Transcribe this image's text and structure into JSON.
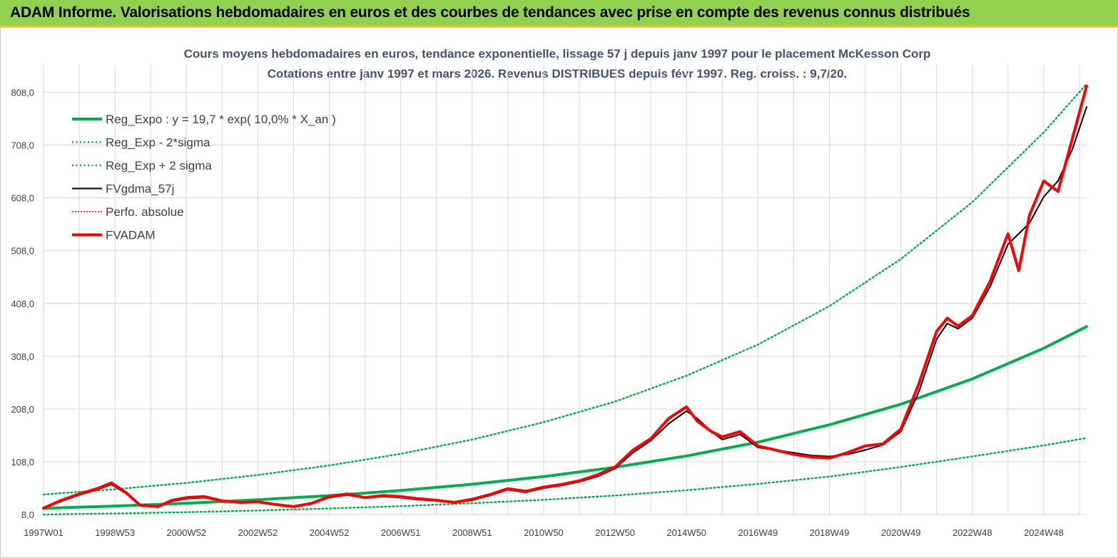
{
  "banner": {
    "title": "ADAM Informe. Valorisations hebdomadaires en euros et des courbes de tendances avec prise en compte des revenus connus distribués",
    "colors": {
      "background": "#92d050",
      "underline": "#f5c400"
    }
  },
  "chart_data": {
    "type": "line",
    "title": "Cours moyens hebdomadaires en euros, tendance exponentielle, lissage 57 j depuis janv 1997 pour le placement McKesson Corp",
    "subtitle": "Cotations entre janv 1997 et mars 2026. Revenus DISTRIBUES depuis févr 1997. Reg. croiss. : 9,7/20.",
    "xlabel": "",
    "ylabel": "",
    "xlim": [
      1997.0,
      2026.2
    ],
    "ylim": [
      8,
      860
    ],
    "grid": true,
    "y_ticks": [
      "8,0",
      "108,0",
      "208,0",
      "308,0",
      "408,0",
      "508,0",
      "608,0",
      "708,0",
      "808,0"
    ],
    "y_tick_values": [
      8,
      108,
      208,
      308,
      408,
      508,
      608,
      708,
      808
    ],
    "x_ticks": [
      "1997W01",
      "1998W53",
      "2000W52",
      "2002W52",
      "2004W52",
      "2006W51",
      "2008W51",
      "2010W50",
      "2012W50",
      "2014W50",
      "2016W49",
      "2018W49",
      "2020W49",
      "2022W48",
      "2024W48"
    ],
    "x_tick_values": [
      1997.0,
      1999.0,
      2001.0,
      2003.0,
      2005.0,
      2007.0,
      2009.0,
      2011.0,
      2013.0,
      2015.0,
      2017.0,
      2019.0,
      2021.0,
      2023.0,
      2025.0
    ],
    "legend": {
      "position": "top-left",
      "entries": [
        {
          "key": "reg",
          "label": "Reg_Expo : y = 19,7 * exp( 10,0% *  X_an )"
        },
        {
          "key": "minus",
          "label": "Reg_Exp - 2*sigma"
        },
        {
          "key": "plus",
          "label": "Reg_Exp + 2 sigma"
        },
        {
          "key": "gdma",
          "label": "FVgdma_57j"
        },
        {
          "key": "perfo",
          "label": "Perfo. absolue"
        },
        {
          "key": "adam",
          "label": "FVADAM"
        }
      ]
    },
    "series": [
      {
        "key": "reg",
        "name": "Reg_Expo : y = 19,7 * exp( 10,0% *  X_an )",
        "color": "#00b050",
        "style": "solid-thick",
        "x": [
          1997.0,
          1999.0,
          2001.0,
          2003.0,
          2005.0,
          2007.0,
          2009.0,
          2011.0,
          2013.0,
          2015.0,
          2017.0,
          2019.0,
          2021.0,
          2023.0,
          2025.0,
          2026.2
        ],
        "values": [
          19.7,
          24.1,
          29.4,
          35.9,
          43.8,
          53.5,
          65.4,
          79.8,
          97.5,
          119,
          145,
          178,
          217,
          265,
          323,
          364
        ]
      },
      {
        "key": "minus",
        "name": "Reg_Exp - 2*sigma",
        "color": "#00b050",
        "style": "dotted",
        "x": [
          1997.0,
          1999.0,
          2001.0,
          2003.0,
          2005.0,
          2007.0,
          2009.0,
          2011.0,
          2013.0,
          2015.0,
          2017.0,
          2019.0,
          2021.0,
          2023.0,
          2025.0,
          2026.2
        ],
        "values": [
          8,
          10,
          12.5,
          15.5,
          19.5,
          24,
          29.5,
          36,
          44,
          54,
          66,
          80,
          98,
          118,
          139,
          153
        ]
      },
      {
        "key": "plus",
        "name": "Reg_Exp + 2 sigma",
        "color": "#00b050",
        "style": "dotted",
        "x": [
          1997.0,
          1999.0,
          2001.0,
          2003.0,
          2005.0,
          2007.0,
          2009.0,
          2011.0,
          2013.0,
          2015.0,
          2017.0,
          2019.0,
          2021.0,
          2023.0,
          2025.0,
          2026.2
        ],
        "values": [
          46,
          56,
          68,
          83,
          101,
          123,
          150,
          183,
          222,
          271,
          330,
          403,
          492,
          600,
          732,
          824
        ]
      },
      {
        "key": "perfo",
        "name": "Perfo. absolue",
        "color": "#ff0000",
        "style": "dotted-thin",
        "x": [],
        "values": []
      },
      {
        "key": "gdma",
        "name": "FVgdma_57j",
        "color": "#000000",
        "style": "solid",
        "x": [
          1997.0,
          1997.5,
          1998.0,
          1998.5,
          1998.9,
          1999.3,
          1999.7,
          2000.2,
          2000.6,
          2001.0,
          2001.5,
          2002.0,
          2002.5,
          2003.0,
          2003.5,
          2004.0,
          2004.5,
          2005.0,
          2005.5,
          2006.0,
          2006.5,
          2007.0,
          2007.5,
          2008.0,
          2008.5,
          2009.0,
          2009.5,
          2010.0,
          2010.5,
          2011.0,
          2011.5,
          2012.0,
          2012.5,
          2013.0,
          2013.5,
          2014.0,
          2014.5,
          2015.0,
          2015.3,
          2015.7,
          2016.0,
          2016.5,
          2017.0,
          2017.5,
          2018.0,
          2018.5,
          2019.0,
          2019.5,
          2020.0,
          2020.5,
          2021.0,
          2021.5,
          2022.0,
          2022.3,
          2022.6,
          2023.0,
          2023.5,
          2024.0,
          2024.3,
          2024.6,
          2025.0,
          2025.4,
          2025.8,
          2026.2
        ],
        "values": [
          20,
          33,
          45,
          55,
          65,
          48,
          25,
          22,
          33,
          38,
          40,
          33,
          30,
          31,
          26,
          22,
          28,
          40,
          45,
          39,
          42,
          40,
          36,
          34,
          30,
          35,
          44,
          55,
          50,
          58,
          63,
          70,
          80,
          95,
          125,
          148,
          180,
          204,
          190,
          165,
          150,
          160,
          135,
          130,
          125,
          120,
          118,
          122,
          130,
          140,
          165,
          240,
          340,
          370,
          360,
          380,
          440,
          520,
          540,
          560,
          610,
          640,
          700,
          780
        ]
      },
      {
        "key": "adam",
        "name": "FVADAM",
        "color": "#ff0000",
        "style": "solid-thick",
        "x": [
          1997.0,
          1997.5,
          1998.0,
          1998.5,
          1998.9,
          1999.3,
          1999.7,
          2000.2,
          2000.6,
          2001.0,
          2001.5,
          2002.0,
          2002.5,
          2003.0,
          2003.5,
          2004.0,
          2004.5,
          2005.0,
          2005.5,
          2006.0,
          2006.5,
          2007.0,
          2007.5,
          2008.0,
          2008.5,
          2009.0,
          2009.5,
          2010.0,
          2010.5,
          2011.0,
          2011.5,
          2012.0,
          2012.5,
          2013.0,
          2013.5,
          2014.0,
          2014.5,
          2015.0,
          2015.3,
          2015.7,
          2016.0,
          2016.5,
          2017.0,
          2017.5,
          2018.0,
          2018.5,
          2019.0,
          2019.5,
          2020.0,
          2020.5,
          2021.0,
          2021.5,
          2022.0,
          2022.3,
          2022.6,
          2023.0,
          2023.5,
          2024.0,
          2024.3,
          2024.6,
          2025.0,
          2025.4,
          2025.8,
          2026.2
        ],
        "values": [
          20,
          35,
          47,
          57,
          68,
          50,
          26,
          23,
          35,
          40,
          42,
          34,
          31,
          32,
          27,
          23,
          29,
          42,
          47,
          40,
          44,
          42,
          38,
          35,
          31,
          37,
          46,
          57,
          52,
          60,
          65,
          72,
          83,
          98,
          130,
          152,
          190,
          212,
          185,
          165,
          155,
          165,
          138,
          130,
          122,
          117,
          115,
          125,
          138,
          142,
          170,
          255,
          355,
          380,
          365,
          385,
          450,
          540,
          470,
          575,
          640,
          620,
          720,
          820
        ]
      }
    ]
  }
}
